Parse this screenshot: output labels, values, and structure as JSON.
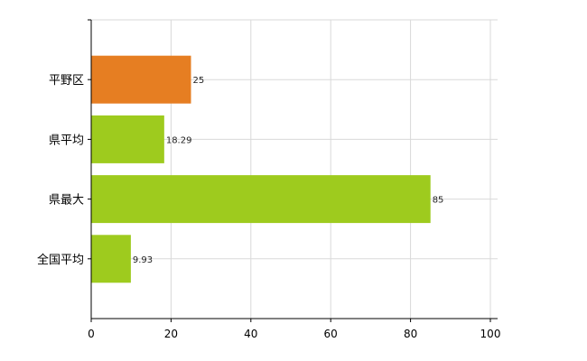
{
  "chart_data": {
    "type": "bar",
    "orientation": "horizontal",
    "categories": [
      "平野区",
      "県平均",
      "県最大",
      "全国平均"
    ],
    "values": [
      25,
      18.29,
      85,
      9.93
    ],
    "value_labels": [
      "25",
      "18.29",
      "85",
      "9.93"
    ],
    "bar_colors": [
      "#e67e22",
      "#9ecb1e",
      "#9ecb1e",
      "#9ecb1e"
    ],
    "xlim": [
      0,
      100
    ],
    "xticks": [
      0,
      20,
      40,
      60,
      80,
      100
    ],
    "grid": true,
    "legend": "none",
    "title": "",
    "xlabel": "",
    "ylabel": ""
  }
}
